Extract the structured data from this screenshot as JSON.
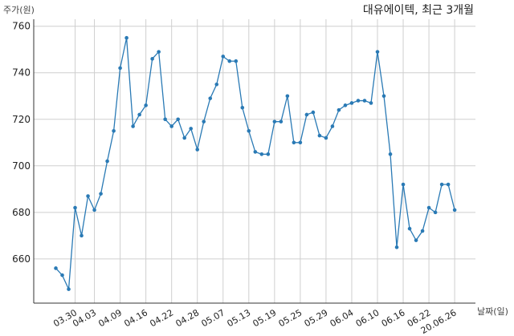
{
  "chart_data": {
    "type": "line",
    "title": "대유에이텍, 최근 3개월",
    "xlabel": "날짜(일)",
    "ylabel": "주가(원)",
    "ylim": [
      641,
      763
    ],
    "yticks": [
      660,
      680,
      700,
      720,
      740,
      760
    ],
    "grid": true,
    "x_tick_labels": [
      "03.30",
      "04.03",
      "04.09",
      "04.16",
      "04.22",
      "04.28",
      "05.07",
      "05.13",
      "05.19",
      "05.25",
      "05.29",
      "06.04",
      "06.10",
      "06.16",
      "06.22",
      "20.06.26"
    ],
    "x_tick_index": [
      3,
      6,
      10,
      14,
      18,
      22,
      26,
      30,
      34,
      38,
      42,
      46,
      50,
      54,
      58,
      62
    ],
    "series": [
      {
        "color": "#2a7ab5",
        "values": [
          656,
          653,
          647,
          682,
          670,
          687,
          681,
          688,
          702,
          715,
          742,
          755,
          717,
          722,
          726,
          746,
          749,
          720,
          717,
          720,
          712,
          716,
          707,
          719,
          729,
          735,
          747,
          745,
          745,
          725,
          715,
          706,
          705,
          705,
          719,
          719,
          730,
          710,
          710,
          722,
          723,
          713,
          712,
          717,
          724,
          726,
          727,
          728,
          728,
          727,
          749,
          730,
          705,
          665,
          692,
          673,
          668,
          672,
          682,
          680,
          692,
          692,
          681
        ]
      }
    ]
  }
}
